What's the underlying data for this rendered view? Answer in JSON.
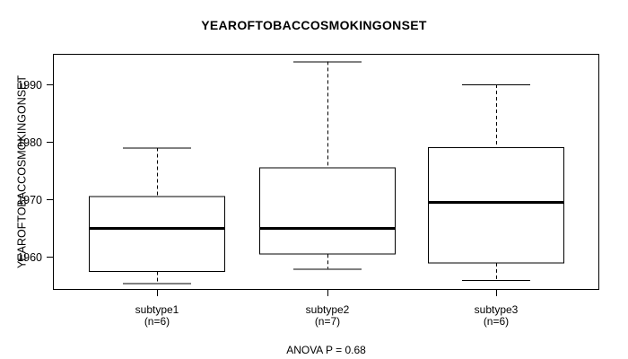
{
  "chart_data": {
    "type": "boxplot",
    "title": "YEAROFTOBACCOSMOKINGONSET",
    "ylabel": "YEAROFTOBACCOSMOKINGONSET",
    "xlabel": "",
    "annotation": "ANOVA P = 0.68",
    "categories": [
      "subtype1",
      "subtype2",
      "subtype3"
    ],
    "category_sublabels": [
      "(n=6)",
      "(n=7)",
      "(n=6)"
    ],
    "y_ticks": [
      "1960",
      "1970",
      "1980",
      "1990"
    ],
    "ylim": [
      1954.3,
      1995.3
    ],
    "grid": false,
    "legend": false,
    "series": [
      {
        "label": "subtype1",
        "n": 6,
        "whisker_low": 1955.5,
        "q1": 1957.5,
        "median": 1965,
        "q3": 1970.5,
        "whisker_high": 1979
      },
      {
        "label": "subtype2",
        "n": 7,
        "whisker_low": 1958,
        "q1": 1960.5,
        "median": 1965,
        "q3": 1975.5,
        "whisker_high": 1994
      },
      {
        "label": "subtype3",
        "n": 6,
        "whisker_low": 1956,
        "q1": 1959,
        "median": 1969.5,
        "q3": 1979,
        "whisker_high": 1990
      }
    ],
    "colors": {
      "line": "#000000",
      "box_fill": "#ffffff",
      "background": "#ffffff",
      "text": "#000000"
    }
  }
}
